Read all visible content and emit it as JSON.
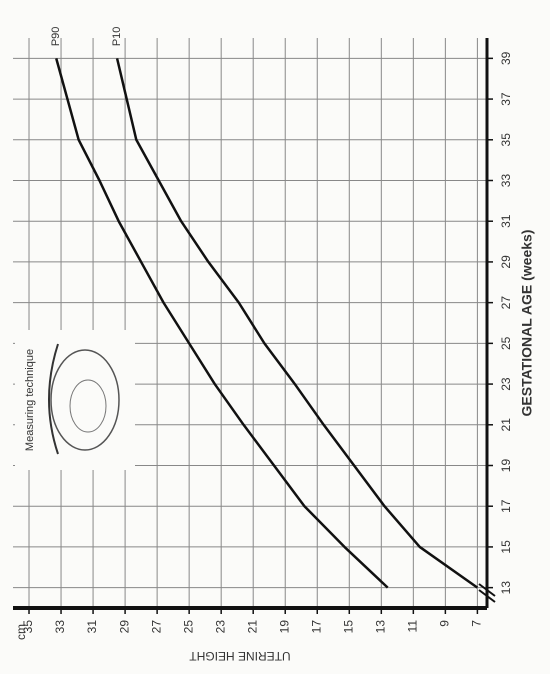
{
  "chart_data": {
    "type": "line",
    "y_label": "cm",
    "y_axis_title": "UTERINE HEIGHT",
    "x_label": "GESTATIONAL AGE (weeks)",
    "annotation": "Measuring technique",
    "x": [
      13,
      15,
      17,
      19,
      21,
      23,
      25,
      27,
      29,
      31,
      33,
      35,
      37,
      39
    ],
    "series": [
      {
        "name": "P90",
        "color": "#111111",
        "values": [
          12.6,
          15.3,
          17.8,
          19.7,
          21.6,
          23.4,
          25,
          26.6,
          28,
          29.4,
          30.6,
          31.9,
          32.6,
          33.3
        ]
      },
      {
        "name": "P10",
        "color": "#111111",
        "values": [
          7,
          10.6,
          12.8,
          14.7,
          16.6,
          18.4,
          20.3,
          21.9,
          23.8,
          25.5,
          26.9,
          28.3,
          28.9,
          29.5
        ]
      }
    ],
    "xlim": [
      12,
      40
    ],
    "ylim": [
      6.4,
      36
    ],
    "xticks": [
      13,
      15,
      17,
      19,
      21,
      23,
      25,
      27,
      29,
      31,
      33,
      35,
      37,
      39
    ],
    "yticks": [
      7,
      9,
      11,
      13,
      15,
      17,
      19,
      21,
      23,
      25,
      27,
      29,
      31,
      33,
      35
    ],
    "grid": true
  }
}
